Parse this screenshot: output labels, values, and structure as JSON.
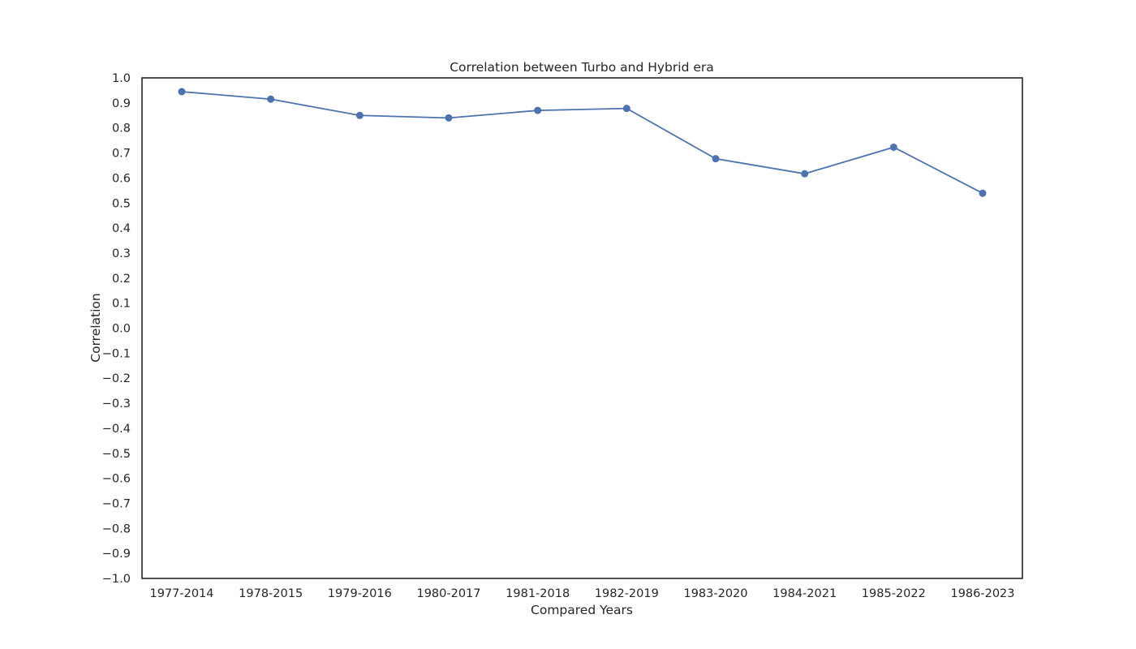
{
  "chart_data": {
    "type": "line",
    "title": "Correlation between Turbo and Hybrid era",
    "xlabel": "Compared Years",
    "ylabel": "Correlation",
    "categories": [
      "1977-2014",
      "1978-2015",
      "1979-2016",
      "1980-2017",
      "1981-2018",
      "1982-2019",
      "1983-2020",
      "1984-2021",
      "1985-2022",
      "1986-2023"
    ],
    "series": [
      {
        "values": [
          0.945,
          0.915,
          0.85,
          0.84,
          0.87,
          0.878,
          0.677,
          0.617,
          0.723,
          0.539
        ],
        "color": "#4c72b0",
        "marker": "circle"
      }
    ],
    "ylim": [
      -1.0,
      1.0
    ],
    "yticks": [
      "1.0",
      "0.9",
      "0.8",
      "0.7",
      "0.6",
      "0.5",
      "0.4",
      "0.3",
      "0.2",
      "0.1",
      "0.0",
      "−0.1",
      "−0.2",
      "−0.3",
      "−0.4",
      "−0.5",
      "−0.6",
      "−0.7",
      "−0.8",
      "−0.9",
      "−1.0"
    ],
    "grid": false,
    "legend": "none"
  }
}
